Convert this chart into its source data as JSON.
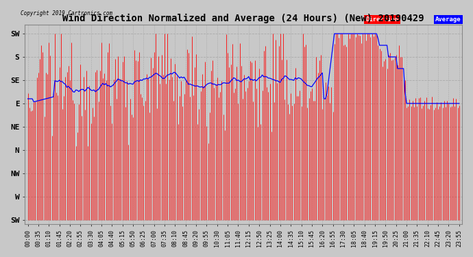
{
  "title": "Wind Direction Normalized and Average (24 Hours) (New) 20190429",
  "copyright_text": "Copyright 2019 Cartronics.com",
  "background_color": "#c8c8c8",
  "plot_bg_color": "#c8c8c8",
  "ytick_labels": [
    "SW",
    "S",
    "SE",
    "E",
    "NE",
    "N",
    "NW",
    "W",
    "SW"
  ],
  "ytick_values": [
    8,
    7,
    6,
    5,
    4,
    3,
    2,
    1,
    0
  ],
  "num_points": 288,
  "bar_color": "#ff0000",
  "line_color": "#0000ff",
  "grid_color": "#aaaaaa",
  "title_fontsize": 10,
  "tick_fontsize": 6,
  "label_fontsize": 8,
  "legend_avg_color": "#0000ff",
  "legend_dir_color": "#ff0000"
}
